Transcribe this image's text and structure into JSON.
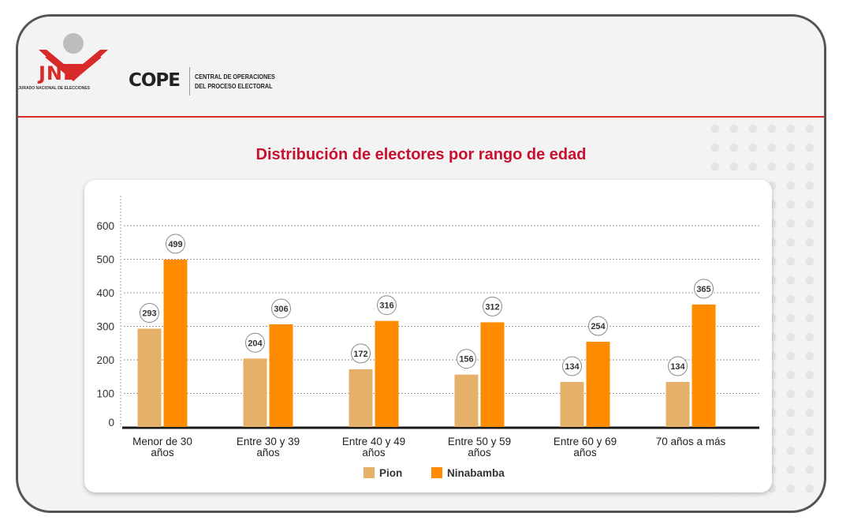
{
  "header": {
    "logo_text": "JNE",
    "logo_subtitle": "JURADO NACIONAL DE ELECCIONES",
    "cope_label": "COPE",
    "cope_line1": "CENTRAL DE OPERACIONES",
    "cope_line2": "DEL PROCESO ELECTORAL"
  },
  "colors": {
    "title": "#c8102e",
    "pion": "#e4b06a",
    "ninabamba": "#ff8c00",
    "accent": "#d92a2a"
  },
  "chart_data": {
    "type": "bar",
    "title": "Distribución de electores por rango de edad",
    "categories": [
      [
        "Menor de 30",
        "años"
      ],
      [
        "Entre 30 y 39",
        "años"
      ],
      [
        "Entre 40 y 49",
        "años"
      ],
      [
        "Entre 50 y 59",
        "años"
      ],
      [
        "Entre 60 y 69",
        "años"
      ],
      [
        "70 años a más"
      ]
    ],
    "series": [
      {
        "name": "Pion",
        "values": [
          293,
          204,
          172,
          156,
          134,
          134
        ],
        "color": "#e4b06a"
      },
      {
        "name": "Ninabamba",
        "values": [
          499,
          306,
          316,
          312,
          254,
          365
        ],
        "color": "#ff8c00"
      }
    ],
    "ylim": [
      0,
      600
    ],
    "yticks": [
      0,
      100,
      200,
      300,
      400,
      500,
      600
    ],
    "grid": true,
    "legend_position": "bottom"
  }
}
